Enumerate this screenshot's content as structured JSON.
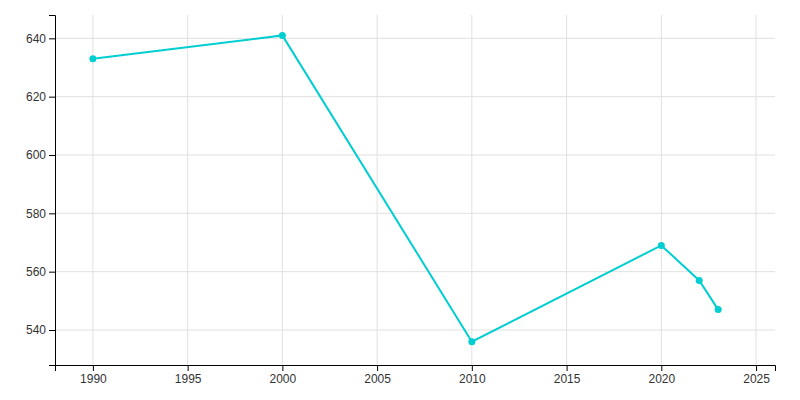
{
  "chart_data": {
    "type": "line",
    "x": [
      1990,
      2000,
      2010,
      2020,
      2022,
      2023
    ],
    "values": [
      633,
      641,
      536,
      569,
      557,
      547
    ],
    "color": "#00CED1",
    "marker": "circle",
    "xlim": [
      1988,
      2026
    ],
    "ylim": [
      528,
      648
    ],
    "xticks": [
      1990,
      1995,
      2000,
      2005,
      2010,
      2015,
      2020,
      2025
    ],
    "yticks": [
      540,
      560,
      580,
      600,
      620,
      640
    ],
    "grid": true
  }
}
